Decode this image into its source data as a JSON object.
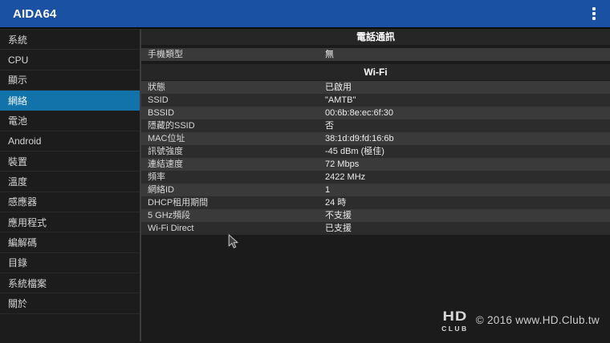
{
  "app": {
    "title": "AIDA64"
  },
  "colors": {
    "topbar": "#1a51a3",
    "selected_item": "#1173a9",
    "sidebar_bg": "#1c1c1c",
    "page_bg": "#1b1b1b",
    "header_band": "#262626",
    "row_light": "#3a3a3a",
    "row_dark": "#2c2c2c"
  },
  "sidebar": {
    "items": [
      {
        "id": "system",
        "label": "系統",
        "selected": false
      },
      {
        "id": "cpu",
        "label": "CPU",
        "selected": false
      },
      {
        "id": "display",
        "label": "顯示",
        "selected": false
      },
      {
        "id": "network",
        "label": "網絡",
        "selected": true
      },
      {
        "id": "battery",
        "label": "電池",
        "selected": false
      },
      {
        "id": "android",
        "label": "Android",
        "selected": false
      },
      {
        "id": "devices",
        "label": "裝置",
        "selected": false
      },
      {
        "id": "temperature",
        "label": "溫度",
        "selected": false
      },
      {
        "id": "sensors",
        "label": "感應器",
        "selected": false
      },
      {
        "id": "apps",
        "label": "應用程式",
        "selected": false
      },
      {
        "id": "codecs",
        "label": "編解碼",
        "selected": false
      },
      {
        "id": "directories",
        "label": "目錄",
        "selected": false
      },
      {
        "id": "system-files",
        "label": "系統檔案",
        "selected": false
      },
      {
        "id": "about",
        "label": "關於",
        "selected": false
      }
    ]
  },
  "content": {
    "sections": [
      {
        "id": "telephony",
        "title": "電話通訊",
        "rows": [
          {
            "label": "手機類型",
            "value": "無"
          }
        ]
      },
      {
        "id": "wifi",
        "title": "Wi-Fi",
        "rows": [
          {
            "label": "狀態",
            "value": "已啟用"
          },
          {
            "label": "SSID",
            "value": "\"AMTB\""
          },
          {
            "label": "BSSID",
            "value": "00:6b:8e:ec:6f:30"
          },
          {
            "label": "隱藏的SSID",
            "value": "否"
          },
          {
            "label": "MAC位址",
            "value": "38:1d:d9:fd:16:6b"
          },
          {
            "label": "訊號強度",
            "value": "-45 dBm (極佳)"
          },
          {
            "label": "連結速度",
            "value": "72 Mbps"
          },
          {
            "label": "頻率",
            "value": "2422 MHz"
          },
          {
            "label": "網絡ID",
            "value": "1"
          },
          {
            "label": "DHCP租用期間",
            "value": "24 時"
          },
          {
            "label": "5 GHz頻段",
            "value": "不支援"
          },
          {
            "label": "Wi-Fi Direct",
            "value": "已支援"
          }
        ]
      }
    ]
  },
  "watermark": {
    "logo_top": "HD",
    "logo_bottom": "CLUB",
    "text": "© 2016  www.HD.Club.tw"
  }
}
